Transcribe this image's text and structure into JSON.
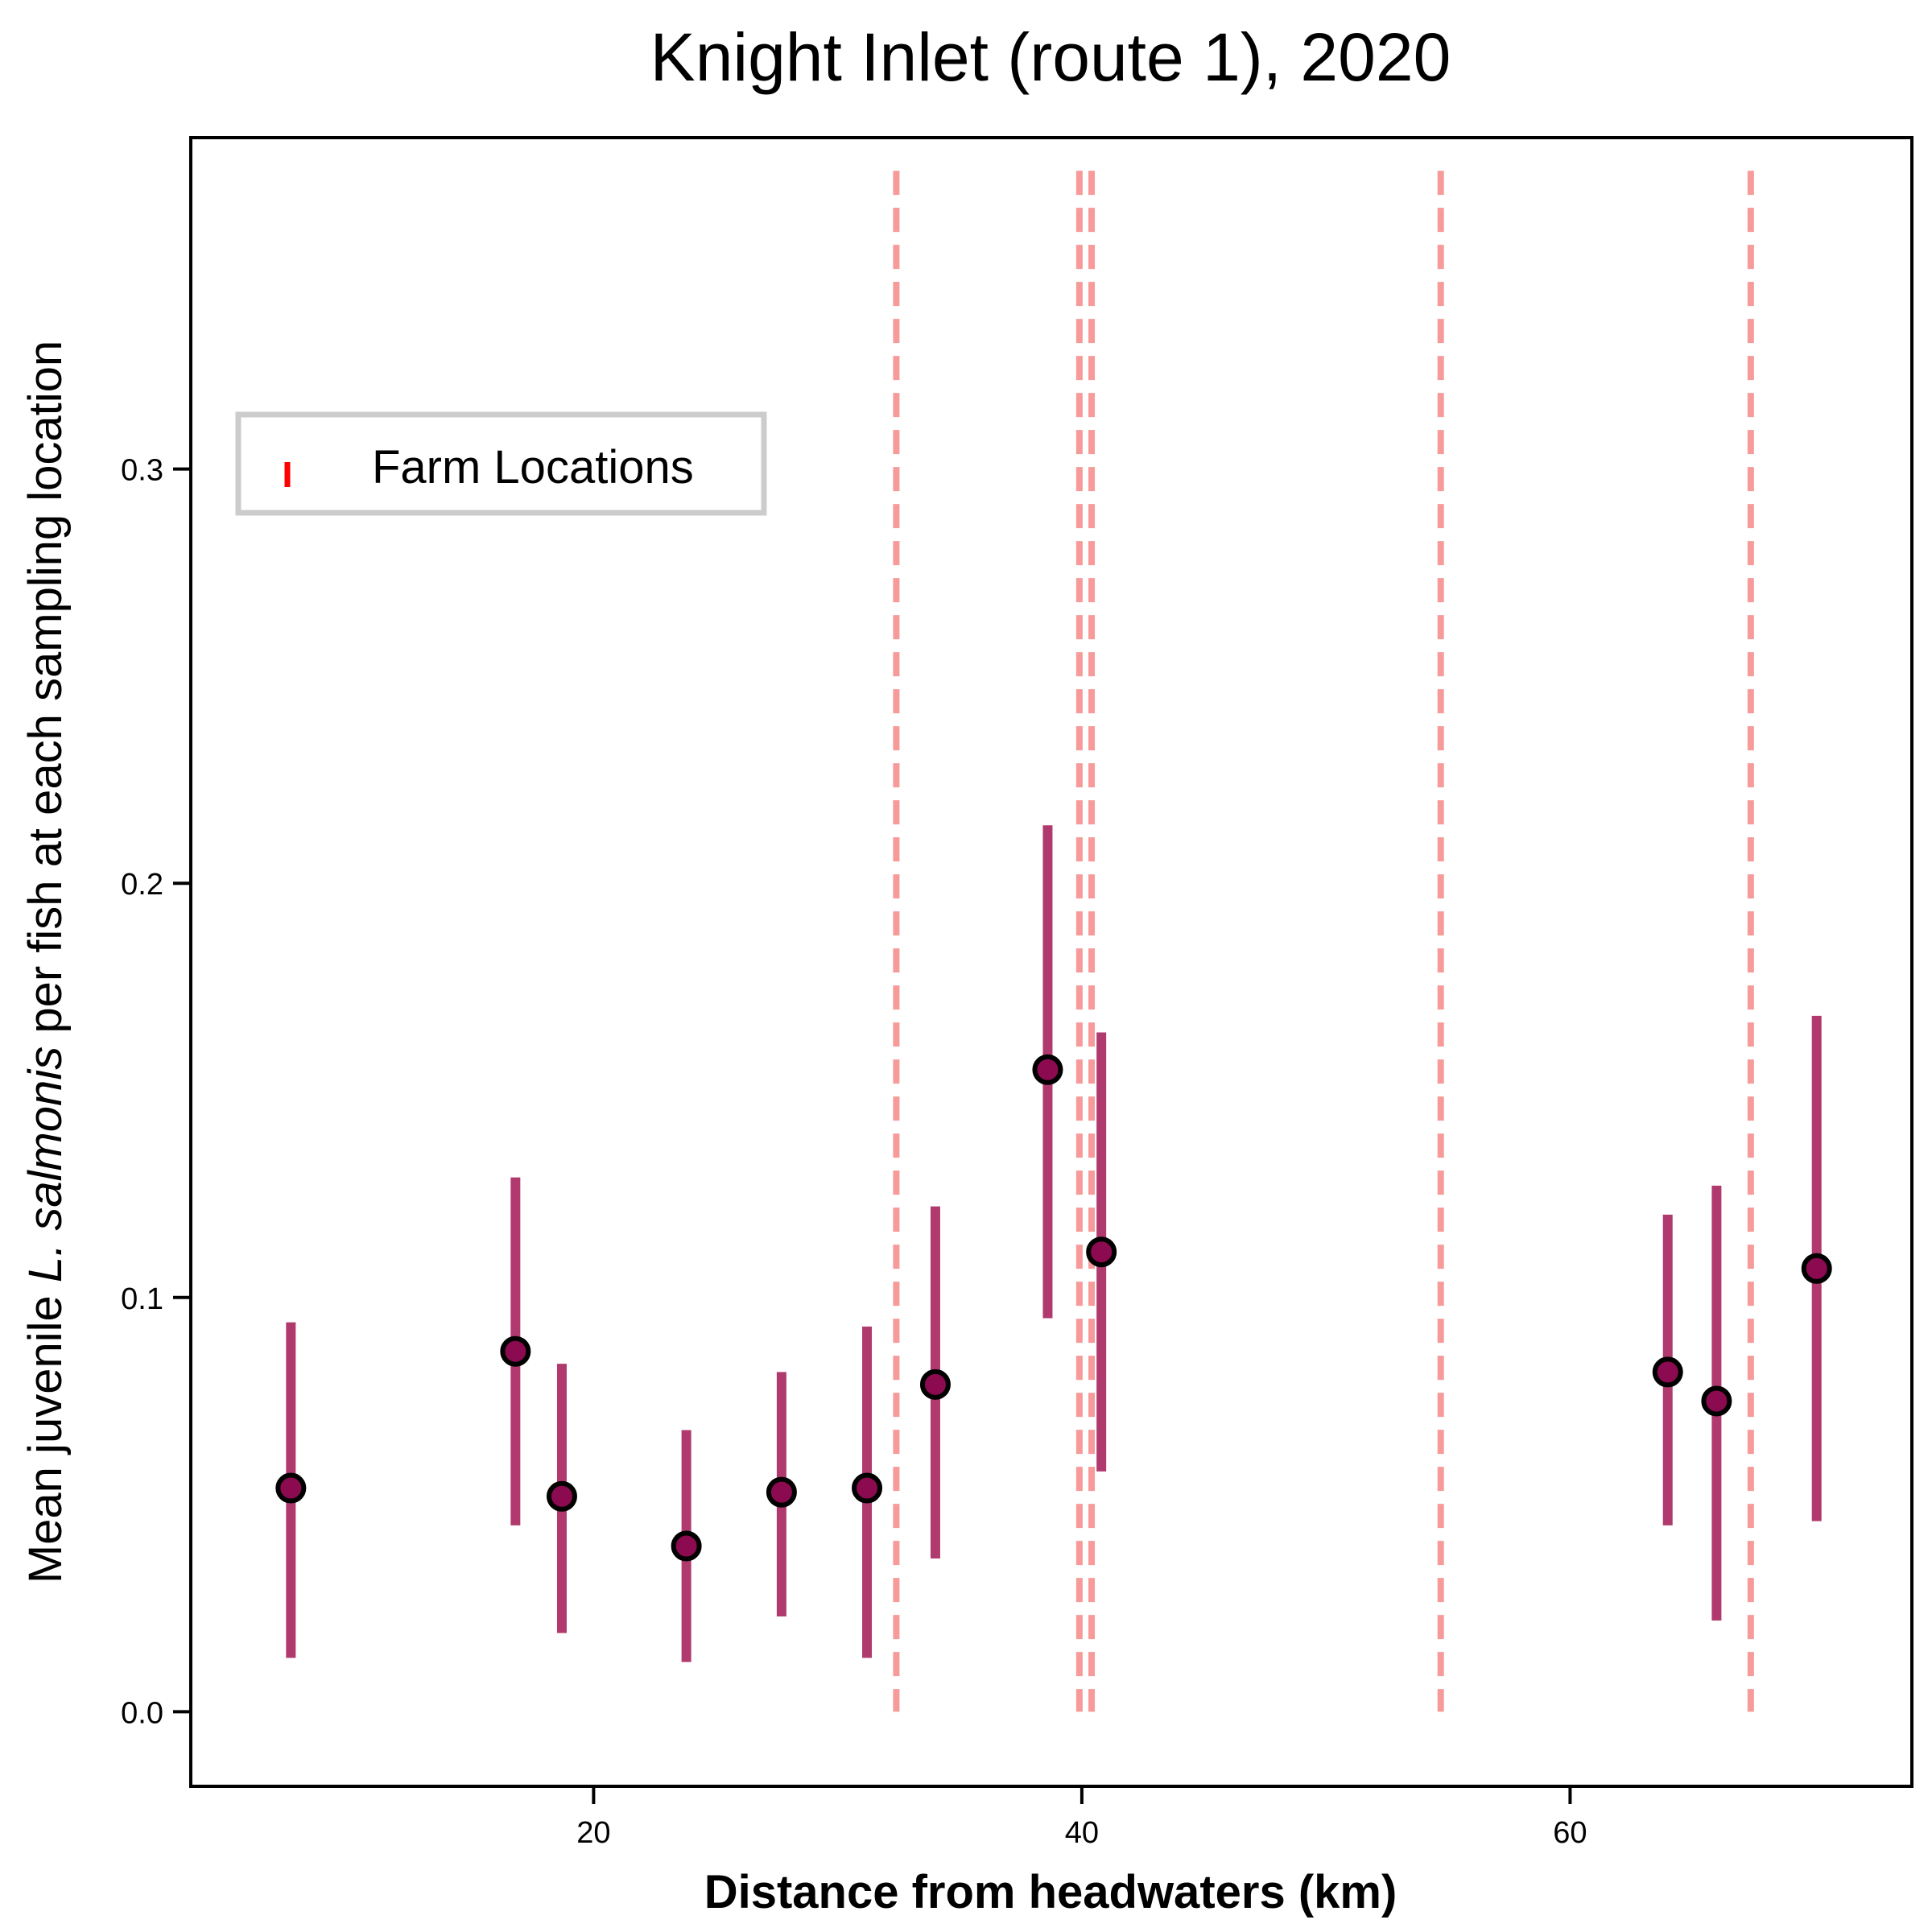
{
  "chart_data": {
    "type": "scatter",
    "title": "Knight Inlet (route 1), 2020",
    "xlabel": "Distance from headwaters (km)",
    "ylabel": {
      "prefix": "Mean juvenile ",
      "italic": "L. salmonis",
      "suffix": " per fish at each sampling location"
    },
    "xlim": [
      3.5,
      74
    ],
    "ylim": [
      -0.018,
      0.38
    ],
    "xticks": [
      20,
      40,
      60
    ],
    "yticks": [
      0.0,
      0.1,
      0.2,
      0.3
    ],
    "ytick_labels": [
      "0.0",
      "0.1",
      "0.2",
      "0.3"
    ],
    "grid": false,
    "legend": {
      "entries": [
        "Farm Locations"
      ],
      "placement": "upper-left"
    },
    "colors": {
      "point": "#8b0a50",
      "errorbar": "#b03a6e",
      "farm_line": "#f79a9a",
      "legend_marker": "#ff0000",
      "legend_border": "#cccccc"
    },
    "series": [
      {
        "points": [
          {
            "x": 7.6,
            "y": 0.054,
            "low": 0.013,
            "high": 0.094
          },
          {
            "x": 16.8,
            "y": 0.087,
            "low": 0.045,
            "high": 0.129
          },
          {
            "x": 18.7,
            "y": 0.052,
            "low": 0.019,
            "high": 0.084
          },
          {
            "x": 23.8,
            "y": 0.04,
            "low": 0.012,
            "high": 0.068
          },
          {
            "x": 27.7,
            "y": 0.053,
            "low": 0.023,
            "high": 0.082
          },
          {
            "x": 31.2,
            "y": 0.054,
            "low": 0.013,
            "high": 0.093
          },
          {
            "x": 34.0,
            "y": 0.079,
            "low": 0.037,
            "high": 0.122
          },
          {
            "x": 38.6,
            "y": 0.155,
            "low": 0.095,
            "high": 0.214
          },
          {
            "x": 40.8,
            "y": 0.111,
            "low": 0.058,
            "high": 0.164
          },
          {
            "x": 64.0,
            "y": 0.082,
            "low": 0.045,
            "high": 0.12
          },
          {
            "x": 66.0,
            "y": 0.075,
            "low": 0.022,
            "high": 0.127
          },
          {
            "x": 70.1,
            "y": 0.107,
            "low": 0.046,
            "high": 0.168
          }
        ]
      }
    ],
    "farm_locations": [
      32.4,
      39.9,
      40.4,
      54.7,
      67.4
    ]
  }
}
